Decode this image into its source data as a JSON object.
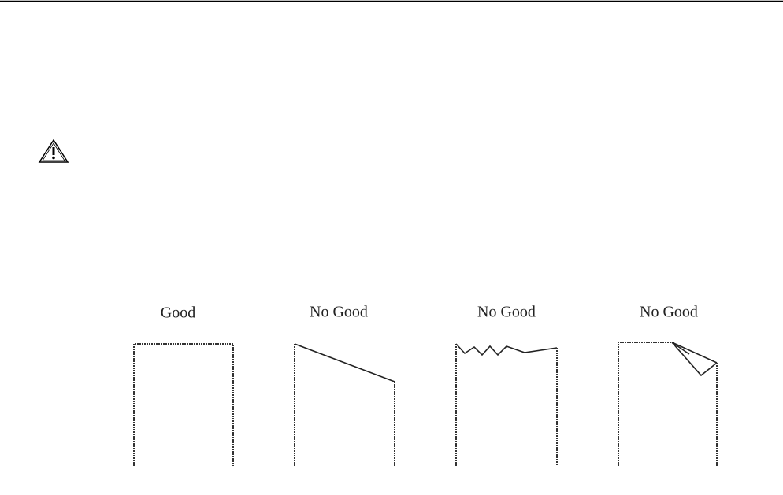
{
  "figure": {
    "labels": [
      "Good",
      "No Good",
      "No Good",
      "No Good"
    ]
  }
}
